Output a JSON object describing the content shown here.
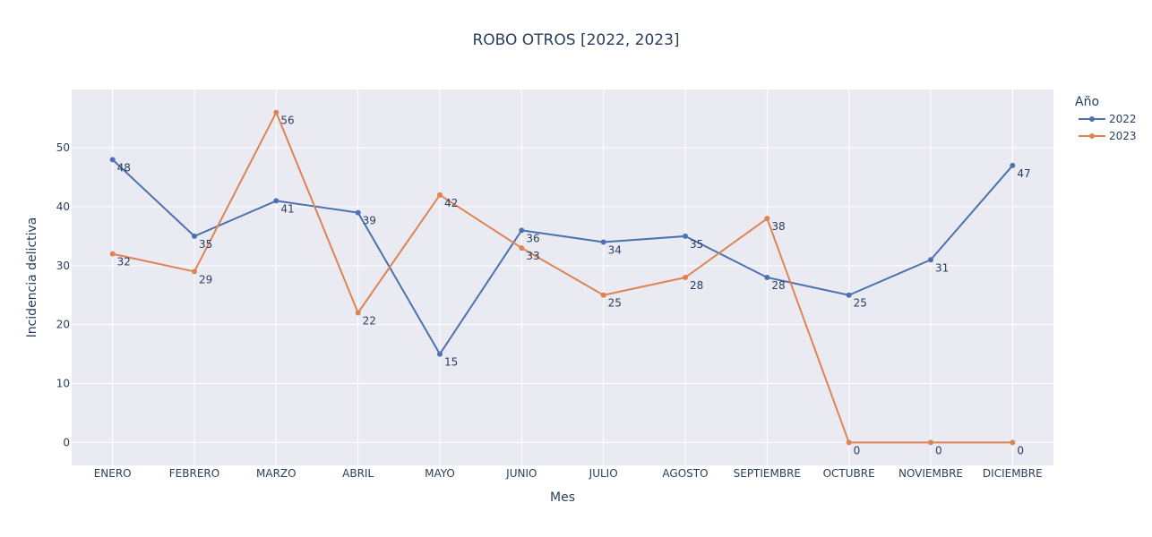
{
  "chart_data": {
    "type": "line",
    "title": "ROBO OTROS [2022, 2023]",
    "xlabel": "Mes",
    "ylabel": "Incidencia delictiva",
    "categories": [
      "ENERO",
      "FEBRERO",
      "MARZO",
      "ABRIL",
      "MAYO",
      "JUNIO",
      "JULIO",
      "AGOSTO",
      "SEPTIEMBRE",
      "OCTUBRE",
      "NOVIEMBRE",
      "DICIEMBRE"
    ],
    "yticks": [
      0,
      10,
      20,
      30,
      40,
      50
    ],
    "ylim": [
      -3.9,
      59.9
    ],
    "grid": true,
    "legend": {
      "title": "Año",
      "placement": "top-right"
    },
    "series": [
      {
        "name": "2022",
        "color": "#4c72b0",
        "values": [
          48,
          35,
          41,
          39,
          15,
          36,
          34,
          35,
          28,
          25,
          31,
          47
        ]
      },
      {
        "name": "2023",
        "color": "#dd8452",
        "values": [
          32,
          29,
          56,
          22,
          42,
          33,
          25,
          28,
          38,
          0,
          0,
          0
        ]
      }
    ],
    "colors": {
      "plot_background": "#eaeaf2",
      "grid": "#ffffff",
      "text": "#2a3f5f"
    }
  }
}
